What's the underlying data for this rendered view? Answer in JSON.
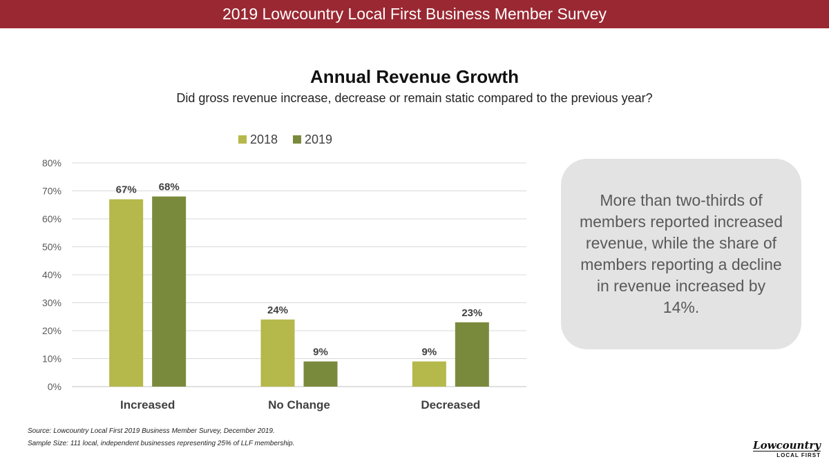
{
  "header": {
    "title": "2019 Lowcountry Local First Business Member Survey"
  },
  "chart_data": {
    "type": "bar",
    "title": "Annual Revenue Growth",
    "subtitle": "Did gross revenue increase, decrease or remain static compared to the previous year?",
    "categories": [
      "Increased",
      "No Change",
      "Decreased"
    ],
    "series": [
      {
        "name": "2018",
        "values": [
          67,
          24,
          9
        ],
        "labels": [
          "67%",
          "24%",
          "9%"
        ],
        "color": "#b5b84a"
      },
      {
        "name": "2019",
        "values": [
          68,
          9,
          23
        ],
        "labels": [
          "68%",
          "9%",
          "23%"
        ],
        "color": "#7a8a3c"
      }
    ],
    "ylim": [
      0,
      80
    ],
    "yticks": [
      "0%",
      "10%",
      "20%",
      "30%",
      "40%",
      "50%",
      "60%",
      "70%",
      "80%"
    ],
    "grid": true,
    "legend_position": "top-center"
  },
  "callout": {
    "text": "More than two-thirds of members reported increased revenue, while the share of members reporting a decline in revenue increased by 14%."
  },
  "footer": {
    "source": "Source: Lowcountry Local First 2019 Business Member Survey, December 2019.",
    "sample": "Sample Size: 111 local, independent businesses representing 25% of LLF membership."
  },
  "logo": {
    "line1": "Lowcountry",
    "line2": "LOCAL FIRST"
  }
}
